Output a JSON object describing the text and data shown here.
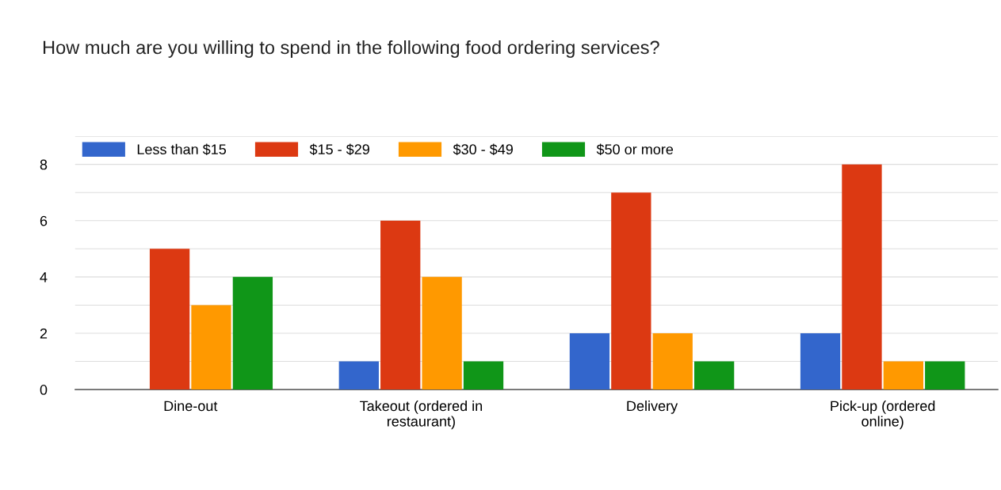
{
  "chart_data": {
    "type": "bar",
    "title": "How much are you willing to spend in the following food ordering services?",
    "categories": [
      "Dine-out",
      "Takeout (ordered in restaurant)",
      "Delivery",
      "Pick-up (ordered online)"
    ],
    "series": [
      {
        "name": "Less than $15",
        "color": "#3366cc",
        "values": [
          0,
          1,
          2,
          2
        ]
      },
      {
        "name": "$15 - $29",
        "color": "#dc3912",
        "values": [
          5,
          6,
          7,
          8
        ]
      },
      {
        "name": "$30 - $49",
        "color": "#ff9900",
        "values": [
          3,
          4,
          2,
          1
        ]
      },
      {
        "name": "$50 or more",
        "color": "#109618",
        "values": [
          4,
          1,
          1,
          1
        ]
      }
    ],
    "ylim": [
      0,
      9
    ],
    "yticks": [
      0,
      {
        "value": 1,
        "label": null
      },
      2,
      {
        "value": 3,
        "label": null
      },
      4,
      {
        "value": 5,
        "label": null
      },
      6,
      {
        "value": 7,
        "label": null
      },
      8,
      {
        "value": 9,
        "label": null
      }
    ],
    "grid": "y",
    "legend": "top left"
  }
}
